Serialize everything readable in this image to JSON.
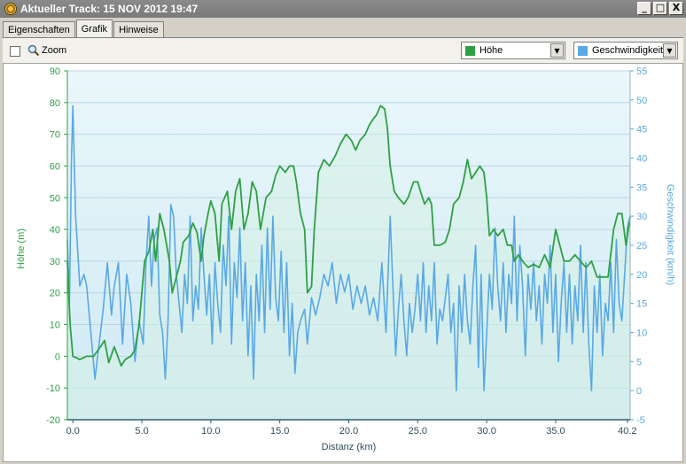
{
  "window": {
    "title": "Aktueller Track: 15 NOV 2012 19:47",
    "buttons": [
      "_",
      "□",
      "X"
    ]
  },
  "tabs": [
    {
      "label": "Eigenschaften",
      "active": false
    },
    {
      "label": "Grafik",
      "active": true
    },
    {
      "label": "Hinweise",
      "active": false
    }
  ],
  "toolbar": {
    "zoom_label": "Zoom",
    "zoom_checked": false,
    "select_left": {
      "label": "Höhe",
      "color": "#2ea043"
    },
    "select_right": {
      "label": "Geschwindigkeit",
      "color": "#5aa8e6"
    }
  },
  "chart_data": {
    "type": "line",
    "xlabel": "Distanz  (km)",
    "ylabel_left": "Höhe (m)",
    "ylabel_right": "Geschwindigkeit (km/h)",
    "xlim": [
      -0.4,
      40.4
    ],
    "ylim_left": [
      -20,
      90
    ],
    "ylim_right": [
      -5,
      55
    ],
    "x_ticks": [
      "0.0",
      "5.0",
      "10.0",
      "15.0",
      "20.0",
      "25.0",
      "30.0",
      "35.0",
      "40.2"
    ],
    "x_tick_values": [
      0,
      5,
      10,
      15,
      20,
      25,
      30,
      35,
      40.2
    ],
    "y_ticks_left": [
      90,
      80,
      70,
      60,
      50,
      40,
      30,
      20,
      10,
      0,
      -10,
      -20
    ],
    "y_ticks_right": [
      55,
      50,
      45,
      40,
      35,
      30,
      25,
      20,
      15,
      10,
      5,
      0,
      -5
    ],
    "grid": true,
    "colors": {
      "hoehe": "#2ea043",
      "speed": "#5aa8e6",
      "plot_bg_top": "#eaf7fb",
      "plot_bg_bottom": "#cfe9f4",
      "fill": "#d6f0e4"
    },
    "series": [
      {
        "name": "Höhe",
        "axis": "left",
        "points": [
          [
            -0.4,
            30
          ],
          [
            -0.2,
            10
          ],
          [
            0,
            0
          ],
          [
            0.5,
            -1
          ],
          [
            1,
            0
          ],
          [
            1.5,
            0
          ],
          [
            2,
            3
          ],
          [
            2.3,
            5
          ],
          [
            2.6,
            -2
          ],
          [
            3,
            3
          ],
          [
            3.5,
            -3
          ],
          [
            3.8,
            -1
          ],
          [
            4.2,
            0
          ],
          [
            4.5,
            2
          ],
          [
            4.8,
            10
          ],
          [
            5.2,
            30
          ],
          [
            5.5,
            33
          ],
          [
            5.8,
            40
          ],
          [
            6,
            30
          ],
          [
            6.3,
            45
          ],
          [
            6.6,
            40
          ],
          [
            7,
            30
          ],
          [
            7.2,
            20
          ],
          [
            7.5,
            25
          ],
          [
            7.8,
            30
          ],
          [
            8,
            36
          ],
          [
            8.4,
            38
          ],
          [
            8.7,
            42
          ],
          [
            9,
            39
          ],
          [
            9.3,
            30
          ],
          [
            9.5,
            38
          ],
          [
            9.8,
            45
          ],
          [
            10,
            49
          ],
          [
            10.3,
            45
          ],
          [
            10.6,
            30
          ],
          [
            10.8,
            48
          ],
          [
            11.2,
            52
          ],
          [
            11.5,
            40
          ],
          [
            11.8,
            52
          ],
          [
            12.1,
            56
          ],
          [
            12.4,
            40
          ],
          [
            12.7,
            45
          ],
          [
            13,
            55
          ],
          [
            13.3,
            52
          ],
          [
            13.6,
            40
          ],
          [
            14,
            50
          ],
          [
            14.4,
            52
          ],
          [
            14.7,
            57
          ],
          [
            15,
            60
          ],
          [
            15.4,
            58
          ],
          [
            15.7,
            60
          ],
          [
            16,
            60
          ],
          [
            16.2,
            55
          ],
          [
            16.5,
            45
          ],
          [
            16.8,
            40
          ],
          [
            17,
            20
          ],
          [
            17.3,
            22
          ],
          [
            17.5,
            40
          ],
          [
            17.8,
            58
          ],
          [
            18.2,
            62
          ],
          [
            18.6,
            60
          ],
          [
            19,
            63
          ],
          [
            19.4,
            67
          ],
          [
            19.8,
            70
          ],
          [
            20.2,
            68
          ],
          [
            20.5,
            65
          ],
          [
            20.8,
            68
          ],
          [
            21.2,
            70
          ],
          [
            21.5,
            73
          ],
          [
            21.8,
            75
          ],
          [
            22,
            76
          ],
          [
            22.3,
            79
          ],
          [
            22.6,
            78
          ],
          [
            22.8,
            72
          ],
          [
            23,
            60
          ],
          [
            23.3,
            52
          ],
          [
            23.6,
            50
          ],
          [
            24,
            48
          ],
          [
            24.3,
            50
          ],
          [
            24.7,
            55
          ],
          [
            25,
            55
          ],
          [
            25.2,
            52
          ],
          [
            25.5,
            48
          ],
          [
            25.8,
            50
          ],
          [
            26,
            48
          ],
          [
            26.2,
            35
          ],
          [
            26.6,
            35
          ],
          [
            27,
            36
          ],
          [
            27.3,
            40
          ],
          [
            27.6,
            48
          ],
          [
            28,
            50
          ],
          [
            28.3,
            55
          ],
          [
            28.6,
            62
          ],
          [
            28.9,
            56
          ],
          [
            29.2,
            58
          ],
          [
            29.5,
            60
          ],
          [
            29.8,
            58
          ],
          [
            30,
            50
          ],
          [
            30.2,
            38
          ],
          [
            30.5,
            40
          ],
          [
            30.8,
            38
          ],
          [
            31.2,
            40
          ],
          [
            31.5,
            35
          ],
          [
            31.8,
            35
          ],
          [
            32,
            30
          ],
          [
            32.3,
            32
          ],
          [
            32.6,
            30
          ],
          [
            33,
            28
          ],
          [
            33.4,
            29
          ],
          [
            33.8,
            28
          ],
          [
            34.2,
            32
          ],
          [
            34.6,
            28
          ],
          [
            35,
            40
          ],
          [
            35.3,
            35
          ],
          [
            35.6,
            30
          ],
          [
            36,
            30
          ],
          [
            36.4,
            32
          ],
          [
            36.8,
            30
          ],
          [
            37.2,
            28
          ],
          [
            37.6,
            30
          ],
          [
            38,
            25
          ],
          [
            38.4,
            25
          ],
          [
            38.8,
            25
          ],
          [
            39.2,
            40
          ],
          [
            39.5,
            45
          ],
          [
            39.8,
            45
          ],
          [
            40.1,
            35
          ],
          [
            40.4,
            44
          ]
        ]
      },
      {
        "name": "Geschwindigkeit",
        "axis": "right",
        "points": [
          [
            -0.4,
            26
          ],
          [
            -0.25,
            15
          ],
          [
            -0.1,
            40
          ],
          [
            0,
            49
          ],
          [
            0.2,
            30
          ],
          [
            0.5,
            18
          ],
          [
            0.8,
            20
          ],
          [
            1,
            18
          ],
          [
            1.3,
            10
          ],
          [
            1.6,
            2
          ],
          [
            1.9,
            8
          ],
          [
            2.2,
            14
          ],
          [
            2.5,
            22
          ],
          [
            2.8,
            13
          ],
          [
            3,
            18
          ],
          [
            3.3,
            22
          ],
          [
            3.6,
            8
          ],
          [
            3.9,
            20
          ],
          [
            4.2,
            15
          ],
          [
            4.5,
            5
          ],
          [
            4.8,
            12
          ],
          [
            5.1,
            8
          ],
          [
            5.3,
            22
          ],
          [
            5.5,
            30
          ],
          [
            5.7,
            18
          ],
          [
            5.9,
            26
          ],
          [
            6.1,
            28
          ],
          [
            6.3,
            13
          ],
          [
            6.5,
            10
          ],
          [
            6.7,
            2
          ],
          [
            6.9,
            12
          ],
          [
            7.1,
            32
          ],
          [
            7.3,
            30
          ],
          [
            7.5,
            20
          ],
          [
            7.7,
            15
          ],
          [
            7.9,
            10
          ],
          [
            8.1,
            20
          ],
          [
            8.3,
            15
          ],
          [
            8.5,
            30
          ],
          [
            8.7,
            12
          ],
          [
            8.9,
            18
          ],
          [
            9.1,
            14
          ],
          [
            9.3,
            28
          ],
          [
            9.5,
            20
          ],
          [
            9.7,
            13
          ],
          [
            9.9,
            20
          ],
          [
            10.1,
            8
          ],
          [
            10.3,
            22
          ],
          [
            10.5,
            15
          ],
          [
            10.7,
            10
          ],
          [
            10.9,
            25
          ],
          [
            11.1,
            18
          ],
          [
            11.3,
            30
          ],
          [
            11.5,
            8
          ],
          [
            11.7,
            22
          ],
          [
            11.9,
            16
          ],
          [
            12.1,
            28
          ],
          [
            12.3,
            12
          ],
          [
            12.5,
            22
          ],
          [
            12.7,
            6
          ],
          [
            12.9,
            18
          ],
          [
            13.1,
            2
          ],
          [
            13.3,
            20
          ],
          [
            13.5,
            12
          ],
          [
            13.7,
            25
          ],
          [
            13.9,
            10
          ],
          [
            14.1,
            28
          ],
          [
            14.3,
            14
          ],
          [
            14.5,
            30
          ],
          [
            14.7,
            16
          ],
          [
            14.9,
            12
          ],
          [
            15.1,
            24
          ],
          [
            15.3,
            10
          ],
          [
            15.5,
            22
          ],
          [
            15.7,
            6
          ],
          [
            15.9,
            15
          ],
          [
            16.1,
            3
          ],
          [
            16.3,
            10
          ],
          [
            16.5,
            12
          ],
          [
            16.8,
            14
          ],
          [
            17,
            8
          ],
          [
            17.3,
            16
          ],
          [
            17.6,
            13
          ],
          [
            17.9,
            16
          ],
          [
            18.2,
            20
          ],
          [
            18.5,
            18
          ],
          [
            18.8,
            22
          ],
          [
            19.1,
            15
          ],
          [
            19.4,
            20
          ],
          [
            19.7,
            17
          ],
          [
            20,
            20
          ],
          [
            20.3,
            14
          ],
          [
            20.6,
            18
          ],
          [
            20.9,
            15
          ],
          [
            21.2,
            18
          ],
          [
            21.5,
            13
          ],
          [
            21.8,
            16
          ],
          [
            22.1,
            12
          ],
          [
            22.4,
            22
          ],
          [
            22.7,
            10
          ],
          [
            23,
            30
          ],
          [
            23.2,
            18
          ],
          [
            23.4,
            6
          ],
          [
            23.6,
            14
          ],
          [
            23.8,
            20
          ],
          [
            24,
            12
          ],
          [
            24.2,
            6
          ],
          [
            24.4,
            15
          ],
          [
            24.6,
            10
          ],
          [
            24.8,
            14
          ],
          [
            25,
            20
          ],
          [
            25.2,
            12
          ],
          [
            25.4,
            22
          ],
          [
            25.6,
            10
          ],
          [
            25.8,
            18
          ],
          [
            26,
            12
          ],
          [
            26.2,
            22
          ],
          [
            26.4,
            8
          ],
          [
            26.6,
            14
          ],
          [
            26.8,
            12
          ],
          [
            27,
            16
          ],
          [
            27.2,
            20
          ],
          [
            27.4,
            10
          ],
          [
            27.6,
            15
          ],
          [
            27.8,
            0
          ],
          [
            28,
            18
          ],
          [
            28.2,
            10
          ],
          [
            28.4,
            20
          ],
          [
            28.6,
            12
          ],
          [
            28.8,
            8
          ],
          [
            29,
            18
          ],
          [
            29.2,
            25
          ],
          [
            29.4,
            4
          ],
          [
            29.6,
            20
          ],
          [
            29.8,
            0
          ],
          [
            30,
            10
          ],
          [
            30.2,
            20
          ],
          [
            30.4,
            14
          ],
          [
            30.6,
            28
          ],
          [
            30.8,
            18
          ],
          [
            31,
            12
          ],
          [
            31.2,
            22
          ],
          [
            31.4,
            10
          ],
          [
            31.6,
            20
          ],
          [
            31.8,
            15
          ],
          [
            32,
            30
          ],
          [
            32.2,
            12
          ],
          [
            32.4,
            25
          ],
          [
            32.6,
            18
          ],
          [
            32.8,
            6
          ],
          [
            33,
            20
          ],
          [
            33.2,
            14
          ],
          [
            33.4,
            22
          ],
          [
            33.6,
            12
          ],
          [
            33.8,
            18
          ],
          [
            34,
            8
          ],
          [
            34.2,
            20
          ],
          [
            34.4,
            15
          ],
          [
            34.6,
            25
          ],
          [
            34.8,
            10
          ],
          [
            35,
            20
          ],
          [
            35.2,
            5
          ],
          [
            35.4,
            15
          ],
          [
            35.6,
            22
          ],
          [
            35.8,
            10
          ],
          [
            36,
            20
          ],
          [
            36.2,
            8
          ],
          [
            36.4,
            18
          ],
          [
            36.6,
            12
          ],
          [
            36.8,
            25
          ],
          [
            37,
            10
          ],
          [
            37.2,
            22
          ],
          [
            37.4,
            8
          ],
          [
            37.6,
            0
          ],
          [
            37.8,
            18
          ],
          [
            38,
            10
          ],
          [
            38.2,
            20
          ],
          [
            38.4,
            6
          ],
          [
            38.6,
            15
          ],
          [
            38.8,
            12
          ],
          [
            39,
            22
          ],
          [
            39.2,
            10
          ],
          [
            39.4,
            26
          ],
          [
            39.6,
            15
          ],
          [
            39.8,
            12
          ],
          [
            40,
            20
          ],
          [
            40.2,
            28
          ],
          [
            40.4,
            30
          ]
        ]
      }
    ]
  }
}
